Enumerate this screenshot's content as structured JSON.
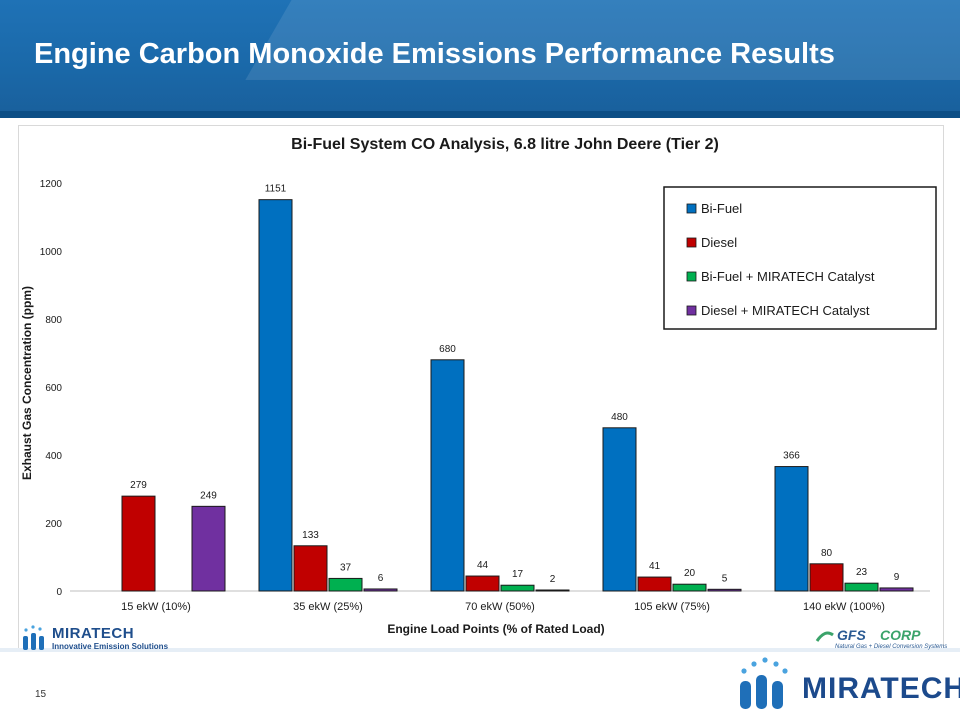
{
  "slide": {
    "title": "Engine Carbon Monoxide Emissions Performance Results",
    "page_number": "15"
  },
  "logos": {
    "left_brand": "MIRATECH",
    "left_tagline": "Innovative Emission Solutions",
    "gfs_name_a": "GFS",
    "gfs_name_b": "CORP",
    "gfs_tagline": "Natural Gas + Diesel Conversion Systems",
    "big_brand": "MIRATECH"
  },
  "colors": {
    "banner": "#1a68a8",
    "bi_fuel": "#0070c0",
    "diesel": "#c00000",
    "bi_fuel_catalyst": "#00b050",
    "diesel_catalyst": "#7030a0"
  },
  "chart_data": {
    "type": "bar",
    "title": "Bi-Fuel System CO Analysis, 6.8 litre John Deere (Tier 2)",
    "xlabel": "Engine Load Points (% of Rated Load)",
    "ylabel": "Exhaust Gas Concentration (ppm)",
    "ylim": [
      0,
      1200
    ],
    "yticks": [
      0,
      200,
      400,
      600,
      800,
      1000,
      1200
    ],
    "grid": false,
    "legend_position": "top-right",
    "categories": [
      "15 ekW (10%)",
      "35 ekW (25%)",
      "70 ekW (50%)",
      "105 ekW (75%)",
      "140 ekW (100%)"
    ],
    "series": [
      {
        "name": "Bi-Fuel",
        "color": "#0070c0",
        "values": [
          null,
          1151,
          680,
          480,
          366
        ]
      },
      {
        "name": "Diesel",
        "color": "#c00000",
        "values": [
          279,
          133,
          44,
          41,
          80
        ]
      },
      {
        "name": "Bi-Fuel + MIRATECH Catalyst",
        "color": "#00b050",
        "values": [
          null,
          37,
          17,
          20,
          23
        ]
      },
      {
        "name": "Diesel + MIRATECH Catalyst",
        "color": "#7030a0",
        "values": [
          249,
          6,
          2,
          5,
          9
        ]
      }
    ]
  }
}
